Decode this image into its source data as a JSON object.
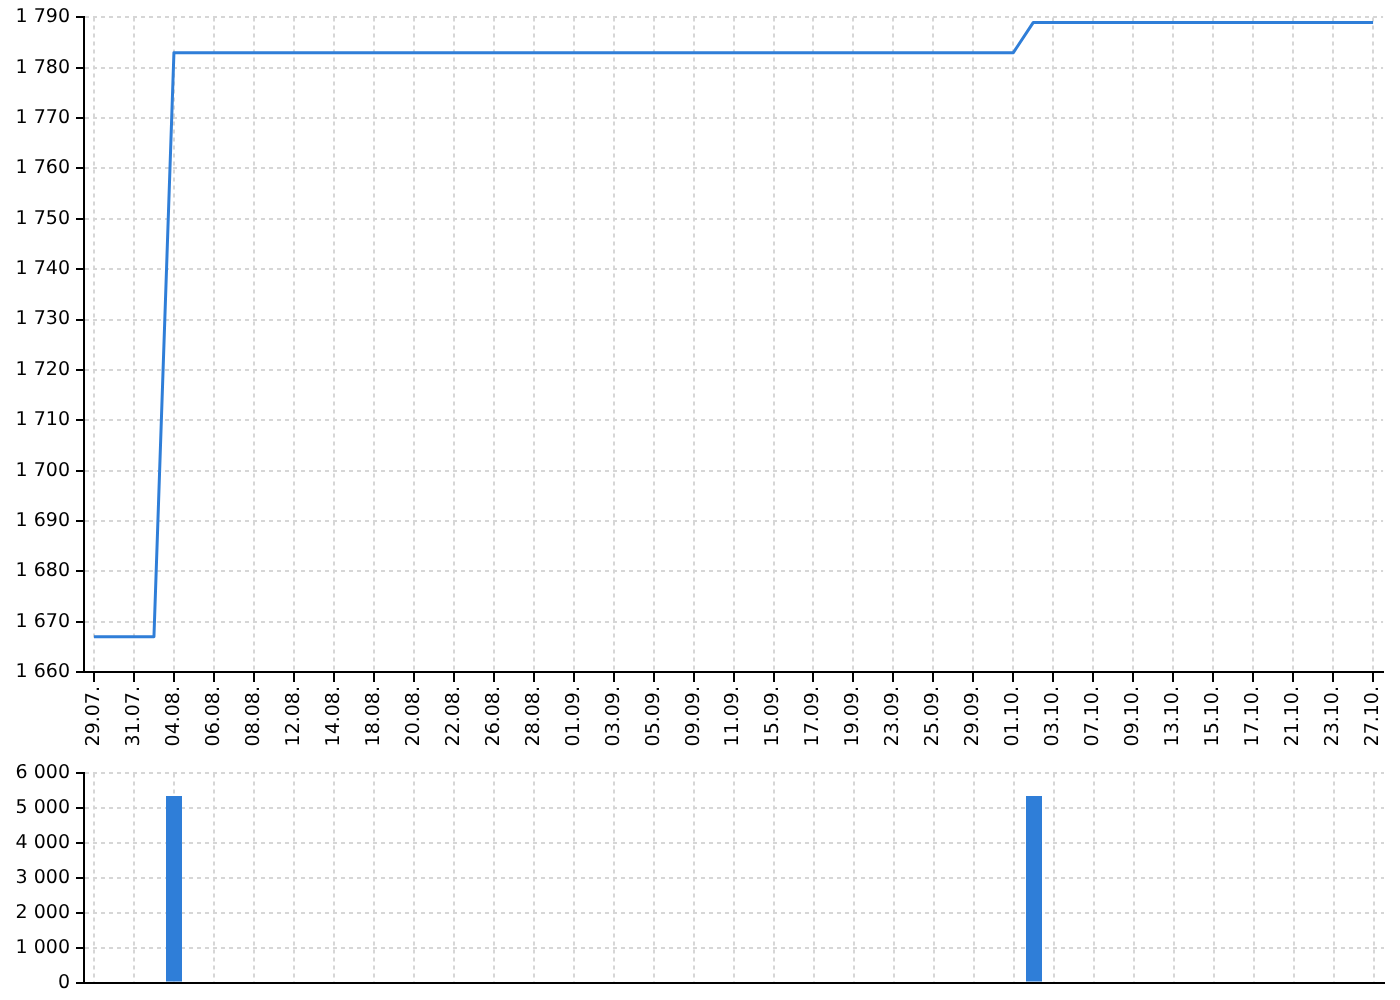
{
  "chart_data": [
    {
      "type": "line",
      "categories": [
        "29.07.",
        null,
        "31.07.",
        null,
        "04.08.",
        null,
        "06.08.",
        null,
        "08.08.",
        null,
        "12.08.",
        null,
        "14.08.",
        null,
        "18.08.",
        null,
        "20.08.",
        null,
        "22.08.",
        null,
        "26.08.",
        null,
        "28.08.",
        null,
        "01.09.",
        null,
        "03.09.",
        null,
        "05.09.",
        null,
        "09.09.",
        null,
        "11.09.",
        null,
        "15.09.",
        null,
        "17.09.",
        null,
        "19.09.",
        null,
        "23.09.",
        null,
        "25.09.",
        null,
        "29.09.",
        null,
        "01.10.",
        null,
        "03.10.",
        null,
        "07.10.",
        null,
        "09.10.",
        null,
        "13.10.",
        null,
        "15.10.",
        null,
        "17.10.",
        null,
        "21.10.",
        null,
        "23.10.",
        null,
        "27.10."
      ],
      "values": [
        1667,
        1667,
        1667,
        1667,
        1783,
        1783,
        1783,
        1783,
        1783,
        1783,
        1783,
        1783,
        1783,
        1783,
        1783,
        1783,
        1783,
        1783,
        1783,
        1783,
        1783,
        1783,
        1783,
        1783,
        1783,
        1783,
        1783,
        1783,
        1783,
        1783,
        1783,
        1783,
        1783,
        1783,
        1783,
        1783,
        1783,
        1783,
        1783,
        1783,
        1783,
        1783,
        1783,
        1783,
        1783,
        1783,
        1783,
        1789,
        1789,
        1789,
        1789,
        1789,
        1789,
        1789,
        1789,
        1789,
        1789,
        1789,
        1789,
        1789,
        1789,
        1789,
        1789,
        1789,
        1789
      ],
      "color": "#2f7ed8",
      "ylim": [
        1660,
        1790
      ],
      "yticks": [
        {
          "value": 1660,
          "label": "1 660"
        },
        {
          "value": 1670,
          "label": "1 670"
        },
        {
          "value": 1680,
          "label": "1 680"
        },
        {
          "value": 1690,
          "label": "1 690"
        },
        {
          "value": 1700,
          "label": "1 700"
        },
        {
          "value": 1710,
          "label": "1 710"
        },
        {
          "value": 1720,
          "label": "1 720"
        },
        {
          "value": 1730,
          "label": "1 730"
        },
        {
          "value": 1740,
          "label": "1 740"
        },
        {
          "value": 1750,
          "label": "1 750"
        },
        {
          "value": 1760,
          "label": "1 760"
        },
        {
          "value": 1770,
          "label": "1 770"
        },
        {
          "value": 1780,
          "label": "1 780"
        },
        {
          "value": 1790,
          "label": "1 790"
        }
      ],
      "grid": true
    },
    {
      "type": "bar",
      "categories": [
        "29.07.",
        null,
        "31.07.",
        null,
        "04.08.",
        null,
        "06.08.",
        null,
        "08.08.",
        null,
        "12.08.",
        null,
        "14.08.",
        null,
        "18.08.",
        null,
        "20.08.",
        null,
        "22.08.",
        null,
        "26.08.",
        null,
        "28.08.",
        null,
        "01.09.",
        null,
        "03.09.",
        null,
        "05.09.",
        null,
        "09.09.",
        null,
        "11.09.",
        null,
        "15.09.",
        null,
        "17.09.",
        null,
        "19.09.",
        null,
        "23.09.",
        null,
        "25.09.",
        null,
        "29.09.",
        null,
        "01.10.",
        null,
        "03.10.",
        null,
        "07.10.",
        null,
        "09.10.",
        null,
        "13.10.",
        null,
        "15.10.",
        null,
        "17.10.",
        null,
        "21.10.",
        null,
        "23.10.",
        null,
        "27.10."
      ],
      "values": [
        null,
        null,
        null,
        null,
        5350,
        null,
        null,
        null,
        null,
        null,
        null,
        null,
        null,
        null,
        null,
        null,
        null,
        null,
        null,
        null,
        null,
        null,
        null,
        null,
        null,
        null,
        null,
        null,
        null,
        null,
        null,
        null,
        null,
        null,
        null,
        null,
        null,
        null,
        null,
        null,
        null,
        null,
        null,
        null,
        null,
        null,
        null,
        5350,
        null,
        null,
        null,
        null,
        null,
        null,
        null,
        null,
        null,
        null,
        null,
        null,
        null,
        null,
        null,
        null,
        null
      ],
      "color": "#2f7ed8",
      "ylim": [
        0,
        6000
      ],
      "yticks": [
        0,
        {
          "value": 1000,
          "label": "1 000"
        },
        {
          "value": 2000,
          "label": "2 000"
        },
        {
          "value": 3000,
          "label": "3 000"
        },
        {
          "value": 4000,
          "label": "4 000"
        },
        {
          "value": 5000,
          "label": "5 000"
        },
        {
          "value": 6000,
          "label": "6 000"
        }
      ],
      "grid": true,
      "tick_labels": "y"
    }
  ]
}
